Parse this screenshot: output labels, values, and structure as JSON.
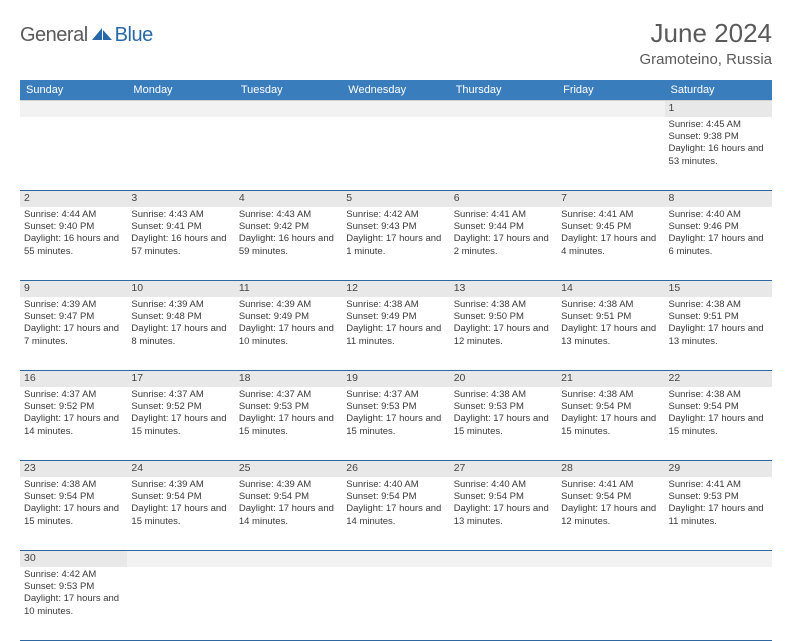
{
  "brand": {
    "word1": "General",
    "word2": "Blue"
  },
  "title": "June 2024",
  "location": "Gramoteino, Russia",
  "colors": {
    "header_bg": "#3a7dbd",
    "header_text": "#ffffff",
    "daynum_bg": "#e8e8e8",
    "row_border": "#2f68a0",
    "brand_gray": "#5a5a5a",
    "brand_blue": "#2968a8"
  },
  "weekdays": [
    "Sunday",
    "Monday",
    "Tuesday",
    "Wednesday",
    "Thursday",
    "Friday",
    "Saturday"
  ],
  "weeks": [
    [
      null,
      null,
      null,
      null,
      null,
      null,
      {
        "d": "1",
        "sr": "Sunrise: 4:45 AM",
        "ss": "Sunset: 9:38 PM",
        "dl": "Daylight: 16 hours and 53 minutes."
      }
    ],
    [
      {
        "d": "2",
        "sr": "Sunrise: 4:44 AM",
        "ss": "Sunset: 9:40 PM",
        "dl": "Daylight: 16 hours and 55 minutes."
      },
      {
        "d": "3",
        "sr": "Sunrise: 4:43 AM",
        "ss": "Sunset: 9:41 PM",
        "dl": "Daylight: 16 hours and 57 minutes."
      },
      {
        "d": "4",
        "sr": "Sunrise: 4:43 AM",
        "ss": "Sunset: 9:42 PM",
        "dl": "Daylight: 16 hours and 59 minutes."
      },
      {
        "d": "5",
        "sr": "Sunrise: 4:42 AM",
        "ss": "Sunset: 9:43 PM",
        "dl": "Daylight: 17 hours and 1 minute."
      },
      {
        "d": "6",
        "sr": "Sunrise: 4:41 AM",
        "ss": "Sunset: 9:44 PM",
        "dl": "Daylight: 17 hours and 2 minutes."
      },
      {
        "d": "7",
        "sr": "Sunrise: 4:41 AM",
        "ss": "Sunset: 9:45 PM",
        "dl": "Daylight: 17 hours and 4 minutes."
      },
      {
        "d": "8",
        "sr": "Sunrise: 4:40 AM",
        "ss": "Sunset: 9:46 PM",
        "dl": "Daylight: 17 hours and 6 minutes."
      }
    ],
    [
      {
        "d": "9",
        "sr": "Sunrise: 4:39 AM",
        "ss": "Sunset: 9:47 PM",
        "dl": "Daylight: 17 hours and 7 minutes."
      },
      {
        "d": "10",
        "sr": "Sunrise: 4:39 AM",
        "ss": "Sunset: 9:48 PM",
        "dl": "Daylight: 17 hours and 8 minutes."
      },
      {
        "d": "11",
        "sr": "Sunrise: 4:39 AM",
        "ss": "Sunset: 9:49 PM",
        "dl": "Daylight: 17 hours and 10 minutes."
      },
      {
        "d": "12",
        "sr": "Sunrise: 4:38 AM",
        "ss": "Sunset: 9:49 PM",
        "dl": "Daylight: 17 hours and 11 minutes."
      },
      {
        "d": "13",
        "sr": "Sunrise: 4:38 AM",
        "ss": "Sunset: 9:50 PM",
        "dl": "Daylight: 17 hours and 12 minutes."
      },
      {
        "d": "14",
        "sr": "Sunrise: 4:38 AM",
        "ss": "Sunset: 9:51 PM",
        "dl": "Daylight: 17 hours and 13 minutes."
      },
      {
        "d": "15",
        "sr": "Sunrise: 4:38 AM",
        "ss": "Sunset: 9:51 PM",
        "dl": "Daylight: 17 hours and 13 minutes."
      }
    ],
    [
      {
        "d": "16",
        "sr": "Sunrise: 4:37 AM",
        "ss": "Sunset: 9:52 PM",
        "dl": "Daylight: 17 hours and 14 minutes."
      },
      {
        "d": "17",
        "sr": "Sunrise: 4:37 AM",
        "ss": "Sunset: 9:52 PM",
        "dl": "Daylight: 17 hours and 15 minutes."
      },
      {
        "d": "18",
        "sr": "Sunrise: 4:37 AM",
        "ss": "Sunset: 9:53 PM",
        "dl": "Daylight: 17 hours and 15 minutes."
      },
      {
        "d": "19",
        "sr": "Sunrise: 4:37 AM",
        "ss": "Sunset: 9:53 PM",
        "dl": "Daylight: 17 hours and 15 minutes."
      },
      {
        "d": "20",
        "sr": "Sunrise: 4:38 AM",
        "ss": "Sunset: 9:53 PM",
        "dl": "Daylight: 17 hours and 15 minutes."
      },
      {
        "d": "21",
        "sr": "Sunrise: 4:38 AM",
        "ss": "Sunset: 9:54 PM",
        "dl": "Daylight: 17 hours and 15 minutes."
      },
      {
        "d": "22",
        "sr": "Sunrise: 4:38 AM",
        "ss": "Sunset: 9:54 PM",
        "dl": "Daylight: 17 hours and 15 minutes."
      }
    ],
    [
      {
        "d": "23",
        "sr": "Sunrise: 4:38 AM",
        "ss": "Sunset: 9:54 PM",
        "dl": "Daylight: 17 hours and 15 minutes."
      },
      {
        "d": "24",
        "sr": "Sunrise: 4:39 AM",
        "ss": "Sunset: 9:54 PM",
        "dl": "Daylight: 17 hours and 15 minutes."
      },
      {
        "d": "25",
        "sr": "Sunrise: 4:39 AM",
        "ss": "Sunset: 9:54 PM",
        "dl": "Daylight: 17 hours and 14 minutes."
      },
      {
        "d": "26",
        "sr": "Sunrise: 4:40 AM",
        "ss": "Sunset: 9:54 PM",
        "dl": "Daylight: 17 hours and 14 minutes."
      },
      {
        "d": "27",
        "sr": "Sunrise: 4:40 AM",
        "ss": "Sunset: 9:54 PM",
        "dl": "Daylight: 17 hours and 13 minutes."
      },
      {
        "d": "28",
        "sr": "Sunrise: 4:41 AM",
        "ss": "Sunset: 9:54 PM",
        "dl": "Daylight: 17 hours and 12 minutes."
      },
      {
        "d": "29",
        "sr": "Sunrise: 4:41 AM",
        "ss": "Sunset: 9:53 PM",
        "dl": "Daylight: 17 hours and 11 minutes."
      }
    ],
    [
      {
        "d": "30",
        "sr": "Sunrise: 4:42 AM",
        "ss": "Sunset: 9:53 PM",
        "dl": "Daylight: 17 hours and 10 minutes."
      },
      null,
      null,
      null,
      null,
      null,
      null
    ]
  ]
}
